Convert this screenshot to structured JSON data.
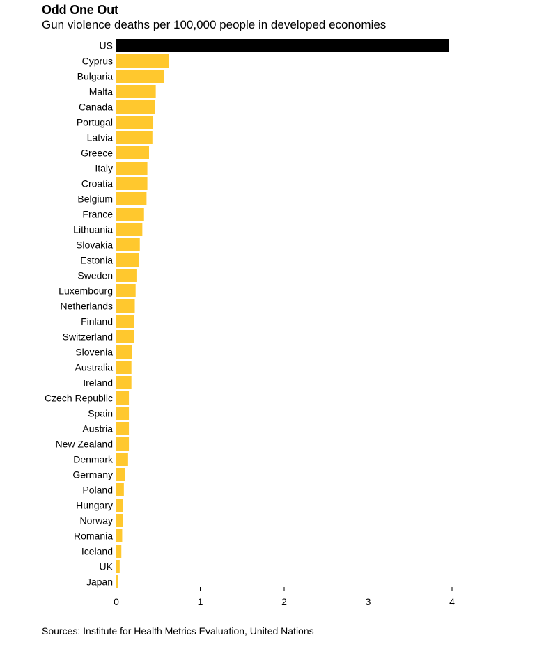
{
  "title": "Odd One Out",
  "subtitle": "Gun violence deaths per 100,000 people in developed economies",
  "source": "Sources: Institute for Health Metrics Evaluation, United Nations",
  "colors": {
    "highlight": "#000000",
    "default": "#ffc82e",
    "text": "#000000",
    "axis": "#000000"
  },
  "chart_data": {
    "type": "bar",
    "orientation": "horizontal",
    "title": "Odd One Out",
    "subtitle": "Gun violence deaths per 100,000 people in developed economies",
    "xlabel": "",
    "ylabel": "",
    "xlim": [
      0,
      4
    ],
    "xticks": [
      0,
      1,
      2,
      3,
      4
    ],
    "grid": false,
    "highlight": "US",
    "categories": [
      "US",
      "Cyprus",
      "Bulgaria",
      "Malta",
      "Canada",
      "Portugal",
      "Latvia",
      "Greece",
      "Italy",
      "Croatia",
      "Belgium",
      "France",
      "Lithuania",
      "Slovakia",
      "Estonia",
      "Sweden",
      "Luxembourg",
      "Netherlands",
      "Finland",
      "Switzerland",
      "Slovenia",
      "Australia",
      "Ireland",
      "Czech Republic",
      "Spain",
      "Austria",
      "New Zealand",
      "Denmark",
      "Germany",
      "Poland",
      "Hungary",
      "Norway",
      "Romania",
      "Iceland",
      "UK",
      "Japan"
    ],
    "values": [
      3.96,
      0.63,
      0.57,
      0.47,
      0.46,
      0.44,
      0.43,
      0.39,
      0.37,
      0.37,
      0.36,
      0.33,
      0.31,
      0.28,
      0.27,
      0.24,
      0.23,
      0.22,
      0.21,
      0.21,
      0.19,
      0.18,
      0.18,
      0.15,
      0.15,
      0.15,
      0.15,
      0.14,
      0.1,
      0.09,
      0.08,
      0.08,
      0.07,
      0.06,
      0.04,
      0.02
    ]
  }
}
